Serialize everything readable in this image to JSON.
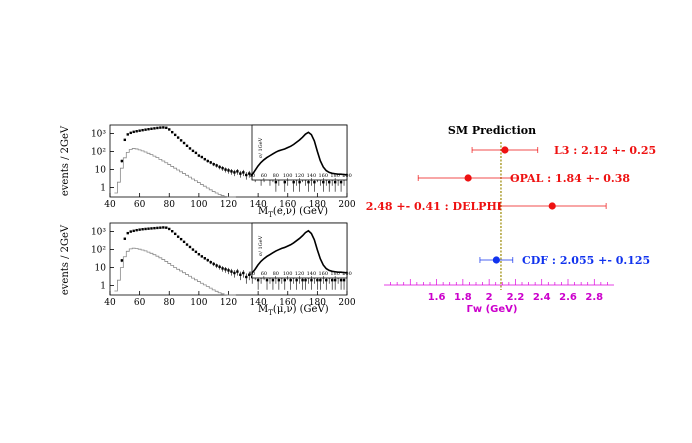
{
  "colors": {
    "red": "#ee1111",
    "blue": "#1133ee",
    "magenta": "#dd00dd",
    "olive": "#998800",
    "black": "#000000",
    "gray": "#8a8a8a"
  },
  "chart_data": [
    {
      "type": "line",
      "panel": "top",
      "ylabel": "events / 2GeV",
      "xlabel": "M_T(e,ν) (GeV)",
      "xlabel_main": "M",
      "xlabel_sub": "T",
      "xlabel_rest": "(e,ν) (GeV)",
      "scale_y": "log",
      "xlim": [
        40,
        200
      ],
      "ylim": [
        0.3,
        3000
      ],
      "xticks": [
        "40",
        "60",
        "80",
        "100",
        "120",
        "140",
        "160",
        "180",
        "200"
      ],
      "yticks": [
        "1",
        "10",
        "10²",
        "10³"
      ],
      "series": [
        {
          "style": "points-with-errors",
          "x": [
            48,
            50,
            52,
            54,
            56,
            58,
            60,
            62,
            64,
            66,
            68,
            70,
            72,
            74,
            76,
            78,
            80,
            82,
            84,
            86,
            88,
            90,
            92,
            94,
            96,
            98,
            100,
            102,
            104,
            106,
            108,
            110,
            112,
            114,
            116,
            118,
            120,
            122,
            124,
            126,
            128,
            130,
            132,
            134,
            136,
            138,
            140,
            142,
            144,
            146,
            148,
            150,
            152,
            154,
            156,
            158,
            160,
            162,
            164,
            166,
            168,
            170,
            172,
            174,
            176,
            178,
            180,
            182,
            184,
            186,
            188,
            190,
            192,
            194,
            196,
            198
          ],
          "y": [
            30,
            450,
            900,
            1100,
            1250,
            1350,
            1450,
            1550,
            1650,
            1750,
            1850,
            1950,
            2050,
            2150,
            2200,
            2100,
            1700,
            1200,
            850,
            600,
            420,
            300,
            210,
            150,
            110,
            85,
            60,
            50,
            38,
            30,
            25,
            20,
            17,
            14,
            12,
            10,
            9,
            8,
            7,
            8,
            6,
            7,
            5,
            6,
            5,
            4,
            5,
            3,
            4,
            6,
            3,
            4,
            2,
            3,
            5,
            2,
            3,
            6,
            2,
            3,
            2,
            4,
            3,
            2,
            3,
            2,
            4,
            3,
            2,
            3,
            2,
            3,
            2,
            3,
            2,
            3
          ]
        },
        {
          "style": "step-histogram",
          "x": [
            44,
            46,
            48,
            50,
            52,
            54,
            56,
            58,
            60,
            62,
            64,
            66,
            68,
            70,
            72,
            74,
            76,
            78,
            80,
            82,
            84,
            86,
            88,
            90,
            92,
            94,
            96,
            98,
            100,
            102,
            104,
            106,
            108,
            110,
            112,
            114,
            116,
            118,
            120,
            122,
            124
          ],
          "y": [
            0.5,
            2,
            12,
            45,
            90,
            130,
            150,
            140,
            125,
            110,
            95,
            80,
            68,
            56,
            46,
            37,
            30,
            24,
            19,
            15,
            12,
            9.5,
            7.5,
            6,
            4.8,
            3.8,
            3,
            2.4,
            1.9,
            1.5,
            1.2,
            0.95,
            0.75,
            0.6,
            0.5,
            0.42,
            0.36,
            0.32,
            0.3,
            0.3,
            0.3
          ]
        }
      ],
      "inset": {
        "ylabel": "σ/ 1GeV",
        "xlim": [
          40,
          200
        ],
        "xticks": [
          "40",
          "60",
          "80",
          "100",
          "120",
          "140",
          "160",
          "180",
          "200"
        ],
        "x": [
          40,
          45,
          50,
          55,
          60,
          65,
          70,
          75,
          80,
          85,
          90,
          95,
          100,
          105,
          110,
          115,
          120,
          125,
          130,
          135,
          140,
          145,
          150,
          155,
          160,
          165,
          170,
          175,
          180,
          185,
          190,
          195,
          200
        ],
        "y": [
          0.02,
          0.12,
          0.22,
          0.3,
          0.36,
          0.41,
          0.45,
          0.49,
          0.53,
          0.56,
          0.58,
          0.6,
          0.63,
          0.66,
          0.7,
          0.75,
          0.8,
          0.86,
          0.93,
          0.97,
          0.92,
          0.78,
          0.55,
          0.34,
          0.2,
          0.12,
          0.08,
          0.06,
          0.05,
          0.04,
          0.04,
          0.03,
          0.03
        ]
      }
    },
    {
      "type": "line",
      "panel": "bottom",
      "ylabel": "events / 2GeV",
      "xlabel": "M_T(μ,ν) (GeV)",
      "xlabel_main": "M",
      "xlabel_sub": "T",
      "xlabel_rest": "(μ,ν) (GeV)",
      "scale_y": "log",
      "xlim": [
        40,
        200
      ],
      "ylim": [
        0.3,
        3000
      ],
      "xticks": [
        "40",
        "60",
        "80",
        "100",
        "120",
        "140",
        "160",
        "180",
        "200"
      ],
      "yticks": [
        "1",
        "10",
        "10²",
        "10³"
      ],
      "series": [
        {
          "style": "points-with-errors",
          "x": [
            48,
            50,
            52,
            54,
            56,
            58,
            60,
            62,
            64,
            66,
            68,
            70,
            72,
            74,
            76,
            78,
            80,
            82,
            84,
            86,
            88,
            90,
            92,
            94,
            96,
            98,
            100,
            102,
            104,
            106,
            108,
            110,
            112,
            114,
            116,
            118,
            120,
            122,
            124,
            126,
            128,
            130,
            132,
            134,
            136,
            138,
            140,
            142,
            144,
            146,
            148,
            150,
            152,
            154,
            156,
            158,
            160,
            162,
            164,
            166,
            168,
            170,
            172,
            174,
            176,
            178,
            180,
            182,
            184,
            186,
            188,
            190,
            192,
            194,
            196,
            198
          ],
          "y": [
            25,
            400,
            820,
            1000,
            1100,
            1200,
            1280,
            1350,
            1400,
            1450,
            1500,
            1550,
            1600,
            1650,
            1700,
            1650,
            1400,
            1050,
            750,
            520,
            380,
            270,
            190,
            140,
            100,
            75,
            55,
            42,
            33,
            26,
            20,
            16,
            13,
            11,
            9,
            8,
            7,
            6,
            5,
            6,
            4,
            5,
            3,
            4,
            3,
            4,
            2,
            3,
            4,
            2,
            3,
            2,
            3,
            2,
            3,
            2,
            4,
            2,
            3,
            2,
            3,
            2,
            2,
            3,
            2,
            3,
            2,
            2,
            3,
            2,
            3,
            2,
            2,
            3,
            2,
            2
          ]
        },
        {
          "style": "step-histogram",
          "x": [
            44,
            46,
            48,
            50,
            52,
            54,
            56,
            58,
            60,
            62,
            64,
            66,
            68,
            70,
            72,
            74,
            76,
            78,
            80,
            82,
            84,
            86,
            88,
            90,
            92,
            94,
            96,
            98,
            100,
            102,
            104,
            106,
            108,
            110,
            112,
            114,
            116,
            118,
            120,
            122,
            124
          ],
          "y": [
            0.5,
            2,
            10,
            40,
            80,
            110,
            120,
            115,
            105,
            95,
            85,
            72,
            62,
            52,
            43,
            35,
            28,
            22,
            17,
            13,
            10,
            8,
            6.5,
            5.2,
            4.1,
            3.3,
            2.6,
            2.1,
            1.7,
            1.35,
            1.1,
            0.9,
            0.72,
            0.58,
            0.48,
            0.4,
            0.35,
            0.31,
            0.3,
            0.3,
            0.3
          ]
        }
      ],
      "inset": {
        "ylabel": "σ/ 1GeV",
        "xlim": [
          40,
          200
        ],
        "xticks": [
          "40",
          "60",
          "80",
          "100",
          "120",
          "140",
          "160",
          "180",
          "200"
        ],
        "x": [
          40,
          45,
          50,
          55,
          60,
          65,
          70,
          75,
          80,
          85,
          90,
          95,
          100,
          105,
          110,
          115,
          120,
          125,
          130,
          135,
          140,
          145,
          150,
          155,
          160,
          165,
          170,
          175,
          180,
          185,
          190,
          195,
          200
        ],
        "y": [
          0.02,
          0.1,
          0.2,
          0.28,
          0.34,
          0.39,
          0.43,
          0.47,
          0.51,
          0.54,
          0.57,
          0.59,
          0.62,
          0.65,
          0.69,
          0.74,
          0.79,
          0.85,
          0.92,
          0.96,
          0.9,
          0.76,
          0.54,
          0.34,
          0.2,
          0.12,
          0.08,
          0.06,
          0.05,
          0.04,
          0.04,
          0.03,
          0.03
        ]
      }
    },
    {
      "type": "scatter",
      "panel": "right",
      "title": "SM Prediction",
      "xlabel": "Γw (GeV)",
      "xlim": [
        1.2,
        2.95
      ],
      "xticks": [
        "1.6",
        "1.8",
        "2",
        "2.2",
        "2.4",
        "2.6",
        "2.8"
      ],
      "sm_value": 2.09,
      "measurements": [
        {
          "label": "L3 : 2.12 +- 0.25",
          "value": 2.12,
          "error": 0.25,
          "color": "#ee1111",
          "label_side": "right"
        },
        {
          "label": "OPAL : 1.84 +- 0.38",
          "value": 1.84,
          "error": 0.38,
          "color": "#ee1111",
          "label_side": "right"
        },
        {
          "label": "2.48 +- 0.41 : DELPHI",
          "value": 2.48,
          "error": 0.41,
          "color": "#ee1111",
          "label_side": "left"
        },
        {
          "label": "CDF : 2.055 +- 0.125",
          "value": 2.055,
          "error": 0.125,
          "color": "#1133ee",
          "label_side": "right"
        }
      ]
    }
  ]
}
